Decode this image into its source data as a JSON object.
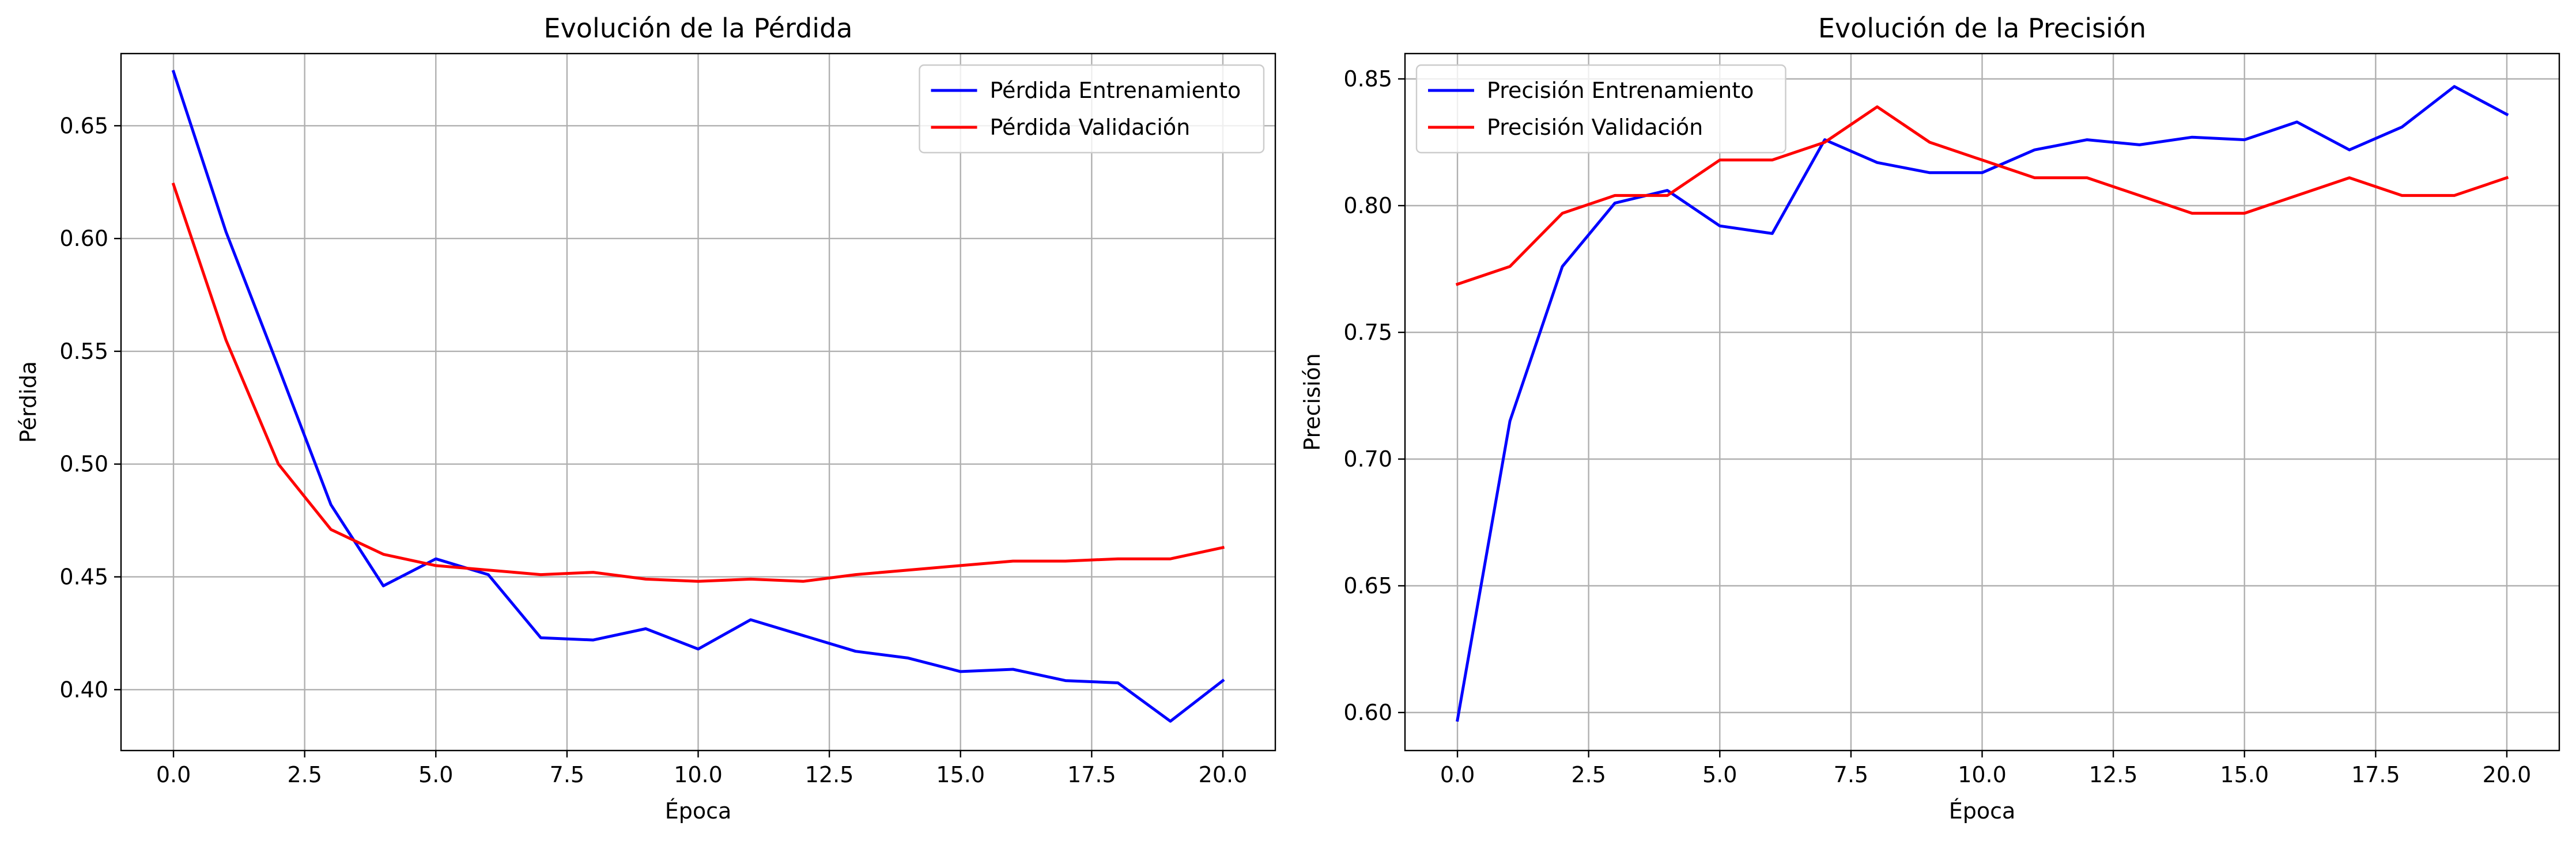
{
  "chart_data": [
    {
      "type": "line",
      "title": "Evolución de la Pérdida",
      "xlabel": "Época",
      "ylabel": "Pérdida",
      "xlim": [
        -1,
        21
      ],
      "ylim": [
        0.373,
        0.682
      ],
      "xticks": [
        0.0,
        2.5,
        5.0,
        7.5,
        10.0,
        12.5,
        15.0,
        17.5,
        20.0
      ],
      "xtick_labels": [
        "0.0",
        "2.5",
        "5.0",
        "7.5",
        "10.0",
        "12.5",
        "15.0",
        "17.5",
        "20.0"
      ],
      "yticks": [
        0.4,
        0.45,
        0.5,
        0.55,
        0.6,
        0.65
      ],
      "ytick_labels": [
        "0.40",
        "0.45",
        "0.50",
        "0.55",
        "0.60",
        "0.65"
      ],
      "grid": true,
      "legend_position": "top-right",
      "x": [
        0,
        1,
        2,
        3,
        4,
        5,
        6,
        7,
        8,
        9,
        10,
        11,
        12,
        13,
        14,
        15,
        16,
        17,
        18,
        19,
        20
      ],
      "series": [
        {
          "name": "Pérdida Entrenamiento",
          "color": "#0000ff",
          "values": [
            0.674,
            0.603,
            0.543,
            0.482,
            0.446,
            0.458,
            0.451,
            0.423,
            0.422,
            0.427,
            0.418,
            0.431,
            0.424,
            0.417,
            0.414,
            0.408,
            0.409,
            0.404,
            0.403,
            0.386,
            0.404
          ]
        },
        {
          "name": "Pérdida Validación",
          "color": "#ff0000",
          "values": [
            0.624,
            0.555,
            0.5,
            0.471,
            0.46,
            0.455,
            0.453,
            0.451,
            0.452,
            0.449,
            0.448,
            0.449,
            0.448,
            0.451,
            0.453,
            0.455,
            0.457,
            0.457,
            0.458,
            0.458,
            0.463
          ]
        }
      ]
    },
    {
      "type": "line",
      "title": "Evolución de la Precisión",
      "xlabel": "Época",
      "ylabel": "Precisión",
      "xlim": [
        -1,
        21
      ],
      "ylim": [
        0.585,
        0.86
      ],
      "xticks": [
        0.0,
        2.5,
        5.0,
        7.5,
        10.0,
        12.5,
        15.0,
        17.5,
        20.0
      ],
      "xtick_labels": [
        "0.0",
        "2.5",
        "5.0",
        "7.5",
        "10.0",
        "12.5",
        "15.0",
        "17.5",
        "20.0"
      ],
      "yticks": [
        0.6,
        0.65,
        0.7,
        0.75,
        0.8,
        0.85
      ],
      "ytick_labels": [
        "0.60",
        "0.65",
        "0.70",
        "0.75",
        "0.80",
        "0.85"
      ],
      "grid": true,
      "legend_position": "top-left",
      "x": [
        0,
        1,
        2,
        3,
        4,
        5,
        6,
        7,
        8,
        9,
        10,
        11,
        12,
        13,
        14,
        15,
        16,
        17,
        18,
        19,
        20
      ],
      "series": [
        {
          "name": "Precisión Entrenamiento",
          "color": "#0000ff",
          "values": [
            0.597,
            0.715,
            0.776,
            0.801,
            0.806,
            0.792,
            0.789,
            0.826,
            0.817,
            0.813,
            0.813,
            0.822,
            0.826,
            0.824,
            0.827,
            0.826,
            0.833,
            0.822,
            0.831,
            0.847,
            0.836
          ]
        },
        {
          "name": "Precisión Validación",
          "color": "#ff0000",
          "values": [
            0.769,
            0.776,
            0.797,
            0.804,
            0.804,
            0.818,
            0.818,
            0.825,
            0.839,
            0.825,
            0.818,
            0.811,
            0.811,
            0.804,
            0.797,
            0.797,
            0.804,
            0.811,
            0.804,
            0.804,
            0.811
          ]
        }
      ]
    }
  ]
}
